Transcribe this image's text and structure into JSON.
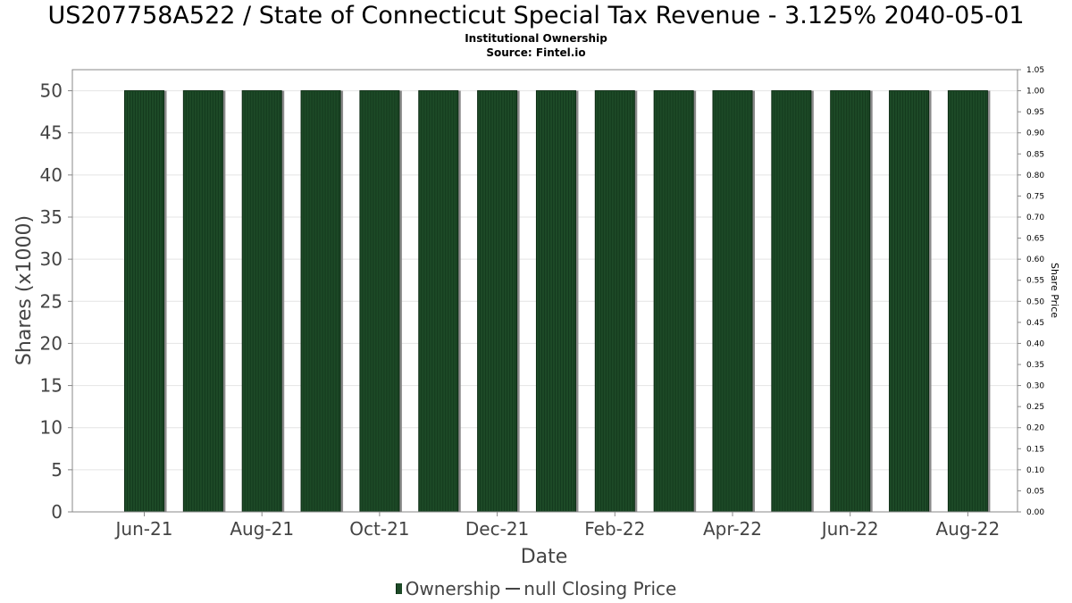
{
  "chart_data": {
    "type": "bar",
    "title": "US207758A522 / State of Connecticut Special Tax Revenue - 3.125% 2040-05-01",
    "subtitle_lines": [
      "Institutional Ownership",
      "Source: Fintel.io"
    ],
    "xlabel": "Date",
    "ylabel": "Shares (x1000)",
    "y2label": "Share Price",
    "x_tick_labels": [
      "Jun-21",
      "Aug-21",
      "Oct-21",
      "Dec-21",
      "Feb-22",
      "Apr-22",
      "Jun-22",
      "Aug-22"
    ],
    "y_ticks": [
      "0",
      "5",
      "10",
      "15",
      "20",
      "25",
      "30",
      "35",
      "40",
      "45",
      "50"
    ],
    "y2_ticks": [
      "0.00",
      "0.05",
      "0.10",
      "0.15",
      "0.20",
      "0.25",
      "0.30",
      "0.35",
      "0.40",
      "0.45",
      "0.50",
      "0.55",
      "0.60",
      "0.65",
      "0.70",
      "0.75",
      "0.80",
      "0.85",
      "0.90",
      "0.95",
      "1.00",
      "1.05"
    ],
    "ylim": [
      0,
      52.5
    ],
    "y2lim": [
      0,
      1.05
    ],
    "series": [
      {
        "name": "Ownership",
        "color": "#1d4a27",
        "values": [
          50,
          50,
          50,
          50,
          50,
          50,
          50,
          50,
          50,
          50,
          50,
          50,
          50,
          50,
          50
        ]
      }
    ],
    "legend": {
      "placement": "bottom",
      "items": [
        "Ownership",
        "null Closing Price"
      ]
    },
    "grid": true
  }
}
